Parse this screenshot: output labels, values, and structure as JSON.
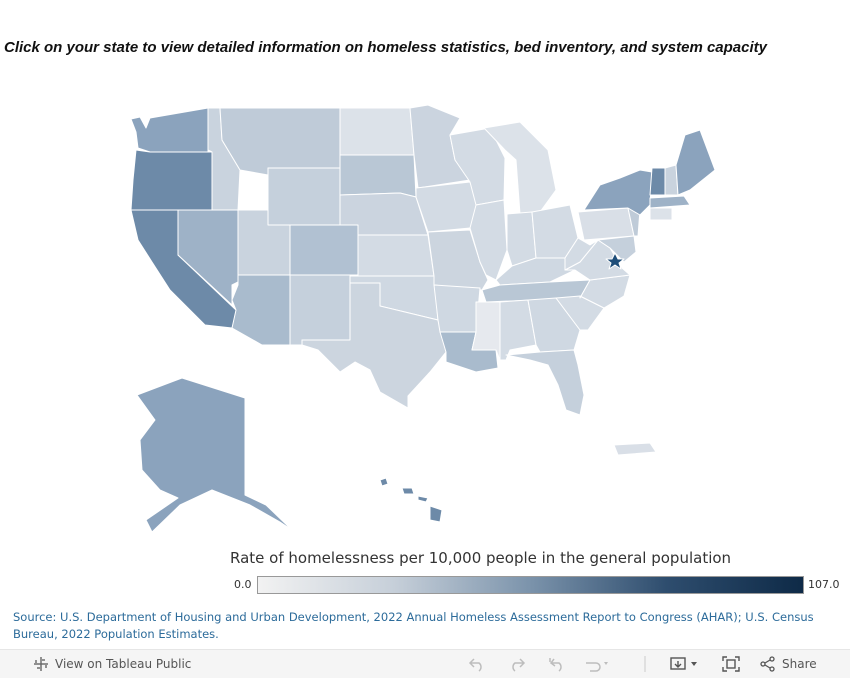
{
  "instruction": "Click on your state to view detailed information on homeless statistics, bed inventory, and system capacity",
  "legend": {
    "title": "Rate of homelessness per 10,000 people in the general population",
    "min": "0.0",
    "max": "107.0"
  },
  "source": "Source: U.S. Department of Housing and Urban Development, 2022 Annual Homeless Assessment Report to Congress (AHAR); U.S. Census Bureau, 2022 Population Estimates.",
  "toolbar": {
    "view_on": "View on Tableau Public",
    "share": "Share",
    "icons": [
      "tableau-logo-icon",
      "undo-icon",
      "redo-icon",
      "revert-icon",
      "refresh-icon",
      "pause-icon",
      "download-icon",
      "fullscreen-icon",
      "share-icon"
    ]
  },
  "colors": {
    "scale_low": "#f2f2f2",
    "scale_high": "#0e2a47",
    "star": "#1f4e79",
    "source_text": "#2c6b9a"
  },
  "map_markers": [
    "DC star marker"
  ]
}
